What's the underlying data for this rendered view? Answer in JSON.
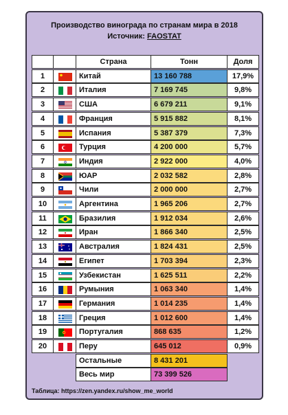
{
  "chart_data": {
    "type": "table",
    "title": "Производство винограда по странам мира в 2018",
    "source_label": "Источник:",
    "source_name": "FAOSTAT",
    "columns": [
      "Страна",
      "Тонн",
      "Доля"
    ],
    "rows": [
      {
        "rank": "1",
        "flag": "china",
        "country": "Китай",
        "tons": "13 160 788",
        "share": "17,9%",
        "value": 13160788
      },
      {
        "rank": "2",
        "flag": "italy",
        "country": "Италия",
        "tons": "7 169 745",
        "share": "9,8%",
        "value": 7169745
      },
      {
        "rank": "3",
        "flag": "usa",
        "country": "США",
        "tons": "6 679 211",
        "share": "9,1%",
        "value": 6679211
      },
      {
        "rank": "4",
        "flag": "france",
        "country": "Франция",
        "tons": "5 915 882",
        "share": "8,1%",
        "value": 5915882
      },
      {
        "rank": "5",
        "flag": "spain",
        "country": "Испания",
        "tons": "5 387 379",
        "share": "7,3%",
        "value": 5387379
      },
      {
        "rank": "6",
        "flag": "turkey",
        "country": "Турция",
        "tons": "4 200 000",
        "share": "5,7%",
        "value": 4200000
      },
      {
        "rank": "7",
        "flag": "india",
        "country": "Индия",
        "tons": "2 922 000",
        "share": "4,0%",
        "value": 2922000
      },
      {
        "rank": "8",
        "flag": "south-africa",
        "country": "ЮАР",
        "tons": "2 032 582",
        "share": "2,8%",
        "value": 2032582
      },
      {
        "rank": "9",
        "flag": "chile",
        "country": "Чили",
        "tons": "2 000 000",
        "share": "2,7%",
        "value": 2000000
      },
      {
        "rank": "10",
        "flag": "argentina",
        "country": "Аргентина",
        "tons": "1 965 206",
        "share": "2,7%",
        "value": 1965206
      },
      {
        "rank": "11",
        "flag": "brazil",
        "country": "Бразилия",
        "tons": "1 912 034",
        "share": "2,6%",
        "value": 1912034
      },
      {
        "rank": "12",
        "flag": "iran",
        "country": "Иран",
        "tons": "1 866 340",
        "share": "2,5%",
        "value": 1866340
      },
      {
        "rank": "13",
        "flag": "australia",
        "country": "Австралия",
        "tons": "1 824 431",
        "share": "2,5%",
        "value": 1824431
      },
      {
        "rank": "14",
        "flag": "egypt",
        "country": "Египет",
        "tons": "1 703 394",
        "share": "2,3%",
        "value": 1703394
      },
      {
        "rank": "15",
        "flag": "uzbekistan",
        "country": "Узбекистан",
        "tons": "1 625 511",
        "share": "2,2%",
        "value": 1625511
      },
      {
        "rank": "16",
        "flag": "romania",
        "country": "Румыния",
        "tons": "1 063 340",
        "share": "1,4%",
        "value": 1063340
      },
      {
        "rank": "17",
        "flag": "germany",
        "country": "Германия",
        "tons": "1 014 235",
        "share": "1,4%",
        "value": 1014235
      },
      {
        "rank": "18",
        "flag": "greece",
        "country": "Греция",
        "tons": "1 012 600",
        "share": "1,4%",
        "value": 1012600
      },
      {
        "rank": "19",
        "flag": "portugal",
        "country": "Португалия",
        "tons": "868 635",
        "share": "1,2%",
        "value": 868635
      },
      {
        "rank": "20",
        "flag": "peru",
        "country": "Перу",
        "tons": "645 012",
        "share": "0,9%",
        "value": 645012
      }
    ],
    "others": {
      "label": "Остальные",
      "tons": "8 431 201",
      "value": 8431201
    },
    "total": {
      "label": "Весь мир",
      "tons": "73 399 526",
      "value": 73399526
    },
    "colors": {
      "card_bg": "#c9bbdf",
      "scale": [
        "#5aa0d8",
        "#b8d3a0",
        "#e6e48c",
        "#fcec84",
        "#fbd47a",
        "#f7a070",
        "#ef6f62"
      ],
      "others_bg": "#f4c01c",
      "total_bg": "#d96bbf"
    }
  },
  "footer": "Таблица: https://zen.yandex.ru/show_me_world"
}
